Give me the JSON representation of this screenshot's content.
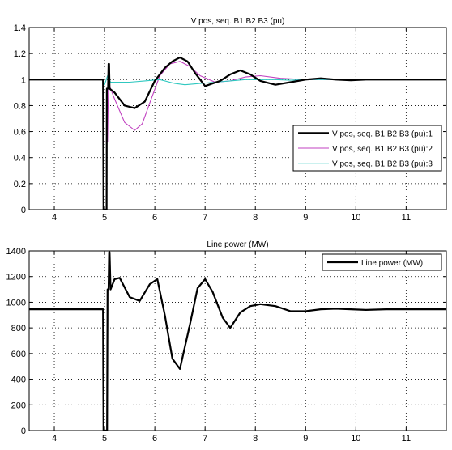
{
  "figure": {
    "background": "#ffffff",
    "axes_background": "#ffffff"
  },
  "chart_data": [
    {
      "type": "line",
      "title": "V pos, seq. B1 B2 B3 (pu)",
      "xlabel": "",
      "ylabel": "",
      "xlim": [
        3.5,
        11.8
      ],
      "ylim": [
        0,
        1.4
      ],
      "xticks": [
        4,
        5,
        6,
        7,
        8,
        9,
        10,
        11
      ],
      "yticks": [
        0,
        0.2,
        0.4,
        0.6,
        0.8,
        1,
        1.2,
        1.4
      ],
      "grid": true,
      "grid_style": "dotted",
      "legend": "right",
      "series": [
        {
          "name": "V pos, seq.  B1 B2 B3 (pu):1",
          "color": "#000000",
          "width": 2.2,
          "x": [
            3.5,
            4.97,
            4.98,
            5.04,
            5.045,
            5.07,
            5.08,
            5.09,
            5.1,
            5.2,
            5.4,
            5.6,
            5.8,
            6.0,
            6.2,
            6.35,
            6.5,
            6.65,
            6.8,
            7.0,
            7.15,
            7.3,
            7.5,
            7.7,
            7.9,
            8.1,
            8.4,
            8.7,
            9.0,
            9.3,
            9.6,
            9.9,
            10.2,
            11.8
          ],
          "y": [
            1.0,
            1.0,
            0.0,
            0.0,
            0.93,
            0.93,
            1.12,
            1.12,
            0.93,
            0.9,
            0.8,
            0.78,
            0.83,
            0.99,
            1.09,
            1.14,
            1.17,
            1.14,
            1.05,
            0.95,
            0.97,
            0.99,
            1.04,
            1.07,
            1.04,
            0.99,
            0.96,
            0.98,
            1.0,
            1.01,
            1.0,
            0.995,
            1.0,
            1.0
          ]
        },
        {
          "name": "V pos, seq.  B1 B2 B3 (pu):2",
          "color": "#c040c0",
          "width": 1.1,
          "x": [
            3.5,
            4.97,
            4.98,
            5.06,
            5.08,
            5.1,
            5.2,
            5.4,
            5.6,
            5.75,
            5.9,
            6.1,
            6.3,
            6.5,
            6.7,
            6.9,
            7.2,
            7.5,
            7.8,
            8.1,
            8.5,
            9.0,
            11.8
          ],
          "y": [
            1.0,
            1.0,
            0.52,
            0.52,
            1.0,
            0.95,
            0.85,
            0.67,
            0.61,
            0.66,
            0.82,
            1.03,
            1.12,
            1.14,
            1.1,
            1.03,
            0.98,
            0.99,
            1.02,
            1.03,
            1.01,
            1.0,
            1.0
          ]
        },
        {
          "name": "V pos, seq.  B1 B2 B3 (pu):3",
          "color": "#30c8c0",
          "width": 1.1,
          "x": [
            3.5,
            4.97,
            5.0,
            5.06,
            5.12,
            5.2,
            5.5,
            5.8,
            6.1,
            6.4,
            6.6,
            6.9,
            7.2,
            7.5,
            7.8,
            8.1,
            8.4,
            8.7,
            9.0,
            11.8
          ],
          "y": [
            1.0,
            1.0,
            0.96,
            1.03,
            0.98,
            0.98,
            0.98,
            0.99,
            1.0,
            0.97,
            0.96,
            0.97,
            0.98,
            0.99,
            1.0,
            1.0,
            1.0,
            0.995,
            1.0,
            1.0
          ]
        }
      ]
    },
    {
      "type": "line",
      "title": "Line power (MW)",
      "xlabel": "",
      "ylabel": "",
      "xlim": [
        3.5,
        11.8
      ],
      "ylim": [
        0,
        1400
      ],
      "xticks": [
        4,
        5,
        6,
        7,
        8,
        9,
        10,
        11
      ],
      "yticks": [
        0,
        200,
        400,
        600,
        800,
        1000,
        1200,
        1400
      ],
      "grid": true,
      "grid_style": "dotted",
      "legend": "top-right",
      "series": [
        {
          "name": "Line power (MW)",
          "color": "#000000",
          "width": 2.2,
          "x": [
            3.5,
            4.97,
            4.98,
            5.05,
            5.06,
            5.08,
            5.09,
            5.1,
            5.12,
            5.2,
            5.3,
            5.5,
            5.7,
            5.9,
            6.05,
            6.2,
            6.35,
            6.5,
            6.7,
            6.85,
            7.0,
            7.15,
            7.35,
            7.5,
            7.7,
            7.9,
            8.1,
            8.4,
            8.7,
            9.0,
            9.3,
            9.6,
            9.9,
            10.2,
            10.6,
            11.8
          ],
          "y": [
            945,
            945,
            0,
            0,
            1100,
            1100,
            1390,
            1390,
            1100,
            1180,
            1190,
            1040,
            1010,
            1140,
            1180,
            900,
            560,
            480,
            830,
            1110,
            1180,
            1080,
            880,
            800,
            920,
            970,
            985,
            970,
            930,
            930,
            945,
            950,
            945,
            940,
            945,
            945
          ]
        }
      ]
    }
  ]
}
